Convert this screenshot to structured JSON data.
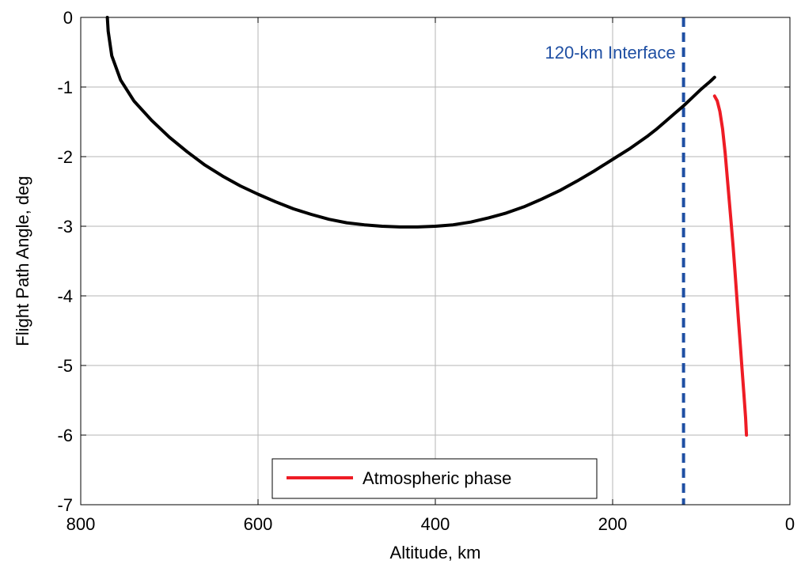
{
  "chart_data": {
    "type": "line",
    "xlabel": "Altitude, km",
    "ylabel": "Flight Path Angle, deg",
    "xlim": [
      800,
      0
    ],
    "ylim": [
      -7,
      0
    ],
    "x_reversed": true,
    "grid": true,
    "xticks": [
      800,
      600,
      400,
      200,
      0
    ],
    "yticks": [
      0,
      -1,
      -2,
      -3,
      -4,
      -5,
      -6,
      -7
    ],
    "xtick_labels": [
      "800",
      "600",
      "400",
      "200",
      "0"
    ],
    "ytick_labels": [
      "0",
      "-1",
      "-2",
      "-3",
      "-4",
      "-5",
      "-6",
      "-7"
    ],
    "series": [
      {
        "color": "#000000",
        "x": [
          770,
          769,
          765,
          755,
          740,
          720,
          700,
          680,
          660,
          640,
          620,
          600,
          580,
          560,
          540,
          520,
          500,
          480,
          460,
          440,
          420,
          400,
          380,
          360,
          340,
          320,
          300,
          280,
          260,
          240,
          220,
          200,
          180,
          160,
          150,
          140,
          130,
          120,
          110,
          100,
          90,
          85
        ],
        "y": [
          0,
          -0.2,
          -0.55,
          -0.9,
          -1.2,
          -1.48,
          -1.72,
          -1.93,
          -2.12,
          -2.28,
          -2.42,
          -2.54,
          -2.65,
          -2.75,
          -2.83,
          -2.9,
          -2.95,
          -2.98,
          -3.0,
          -3.01,
          -3.01,
          -3.0,
          -2.98,
          -2.94,
          -2.88,
          -2.81,
          -2.72,
          -2.61,
          -2.49,
          -2.35,
          -2.2,
          -2.04,
          -1.88,
          -1.7,
          -1.6,
          -1.49,
          -1.38,
          -1.27,
          -1.15,
          -1.03,
          -0.92,
          -0.86
        ]
      },
      {
        "name": "Atmospheric phase",
        "color": "#ee1c25",
        "x": [
          85,
          82,
          79,
          76,
          73,
          70,
          67,
          64,
          62,
          60,
          58,
          56,
          54,
          52,
          50,
          49
        ],
        "y": [
          -1.13,
          -1.2,
          -1.35,
          -1.6,
          -1.95,
          -2.4,
          -2.85,
          -3.3,
          -3.65,
          -4.0,
          -4.35,
          -4.7,
          -5.05,
          -5.4,
          -5.75,
          -6.0
        ]
      }
    ],
    "vline": {
      "x": 120,
      "color": "#1f4fa3",
      "style": "dashed"
    },
    "annotations": [
      {
        "text": "120-km Interface",
        "color": "#1f4fa3"
      }
    ],
    "legend": {
      "placement": "bottom-center",
      "entries": [
        "Atmospheric phase"
      ]
    }
  }
}
